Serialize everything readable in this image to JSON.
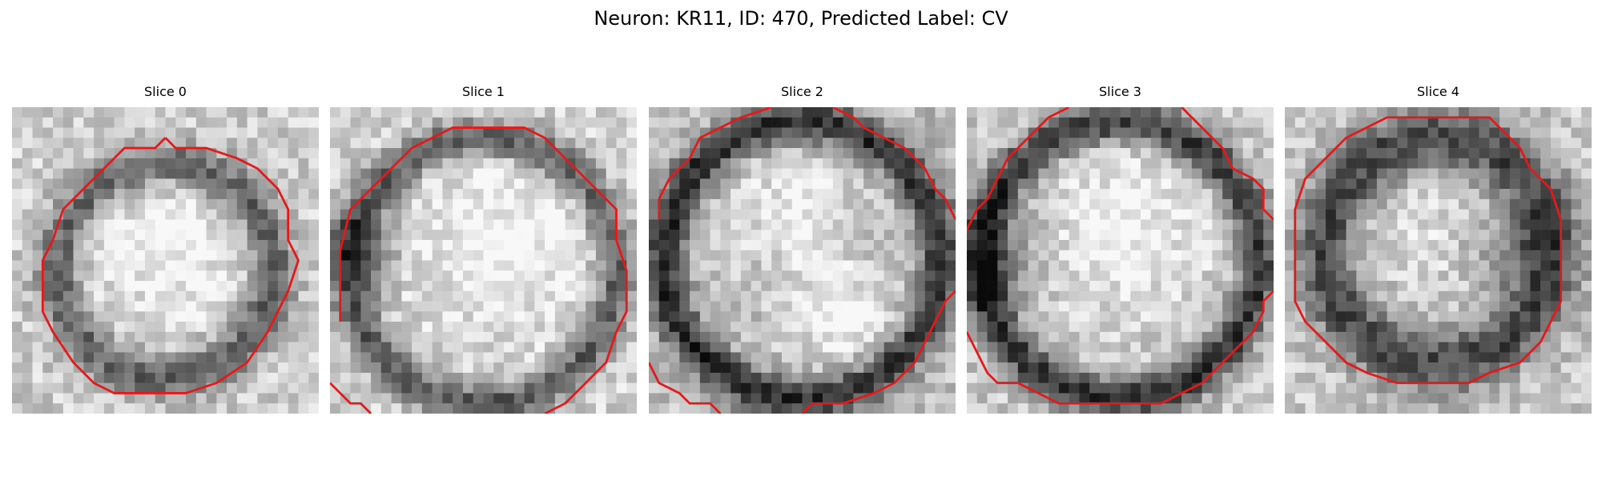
{
  "figure": {
    "title": "Neuron: KR11, ID: 470, Predicted Label: CV"
  },
  "slices": [
    {
      "label": "Slice 0"
    },
    {
      "label": "Slice 1"
    },
    {
      "label": "Slice 2"
    },
    {
      "label": "Slice 3"
    },
    {
      "label": "Slice 4"
    }
  ],
  "colors": {
    "contour": "#e31a1c",
    "background": "#ffffff"
  }
}
